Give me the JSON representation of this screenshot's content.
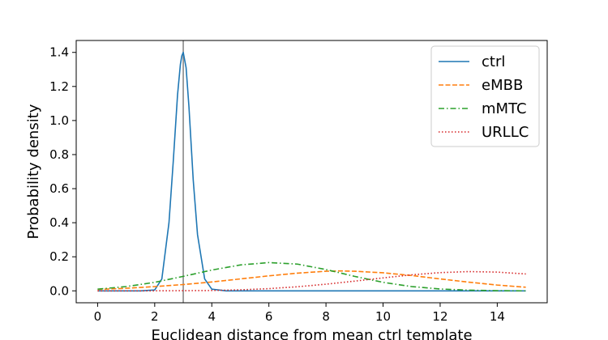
{
  "chart_data": {
    "type": "line",
    "title": "",
    "xlabel": "Euclidean distance from mean ctrl template",
    "ylabel": "Probability density",
    "xlim": [
      -0.75,
      15.75
    ],
    "ylim": [
      -0.07,
      1.47
    ],
    "x_ticks": [
      0,
      2,
      4,
      6,
      8,
      10,
      12,
      14
    ],
    "y_ticks": [
      0.0,
      0.2,
      0.4,
      0.6,
      0.8,
      1.0,
      1.2,
      1.4
    ],
    "grid": false,
    "legend_position": "top-right",
    "reference_line": {
      "x": 3.0,
      "color": "#808080"
    },
    "series": [
      {
        "name": "ctrl",
        "color": "#1f77b4",
        "dash": "solid",
        "x": [
          0,
          1,
          1.5,
          2,
          2.25,
          2.5,
          2.65,
          2.8,
          2.9,
          2.95,
          3.0,
          3.1,
          3.2,
          3.35,
          3.5,
          3.75,
          4,
          4.5,
          5,
          8,
          12,
          15
        ],
        "y": [
          0,
          0,
          0,
          0.005,
          0.07,
          0.4,
          0.76,
          1.15,
          1.33,
          1.38,
          1.4,
          1.31,
          1.08,
          0.65,
          0.33,
          0.07,
          0.01,
          0,
          0,
          0,
          0,
          0
        ]
      },
      {
        "name": "eMBB",
        "color": "#ff7f0e",
        "dash": "dashed",
        "x": [
          0,
          1,
          2,
          3,
          4,
          5,
          6,
          7,
          8,
          8.5,
          9,
          10,
          11,
          12,
          13,
          14,
          15
        ],
        "y": [
          0.008,
          0.015,
          0.025,
          0.037,
          0.052,
          0.07,
          0.088,
          0.104,
          0.115,
          0.117,
          0.115,
          0.106,
          0.09,
          0.07,
          0.051,
          0.034,
          0.021
        ]
      },
      {
        "name": "mMTC",
        "color": "#2ca02c",
        "dash": "dashdot",
        "x": [
          0,
          1,
          2,
          3,
          4,
          5,
          6,
          7,
          8,
          9,
          10,
          11,
          12,
          13,
          14,
          15
        ],
        "y": [
          0.01,
          0.025,
          0.05,
          0.085,
          0.122,
          0.152,
          0.166,
          0.157,
          0.125,
          0.085,
          0.05,
          0.025,
          0.011,
          0.004,
          0.001,
          0
        ]
      },
      {
        "name": "URLLC",
        "color": "#d62728",
        "dash": "dotted",
        "x": [
          0,
          2,
          4,
          5,
          6,
          7,
          8,
          9,
          10,
          11,
          12,
          13,
          14,
          15
        ],
        "y": [
          0,
          0,
          0.002,
          0.006,
          0.013,
          0.024,
          0.039,
          0.057,
          0.076,
          0.094,
          0.107,
          0.113,
          0.11,
          0.099
        ]
      }
    ]
  }
}
